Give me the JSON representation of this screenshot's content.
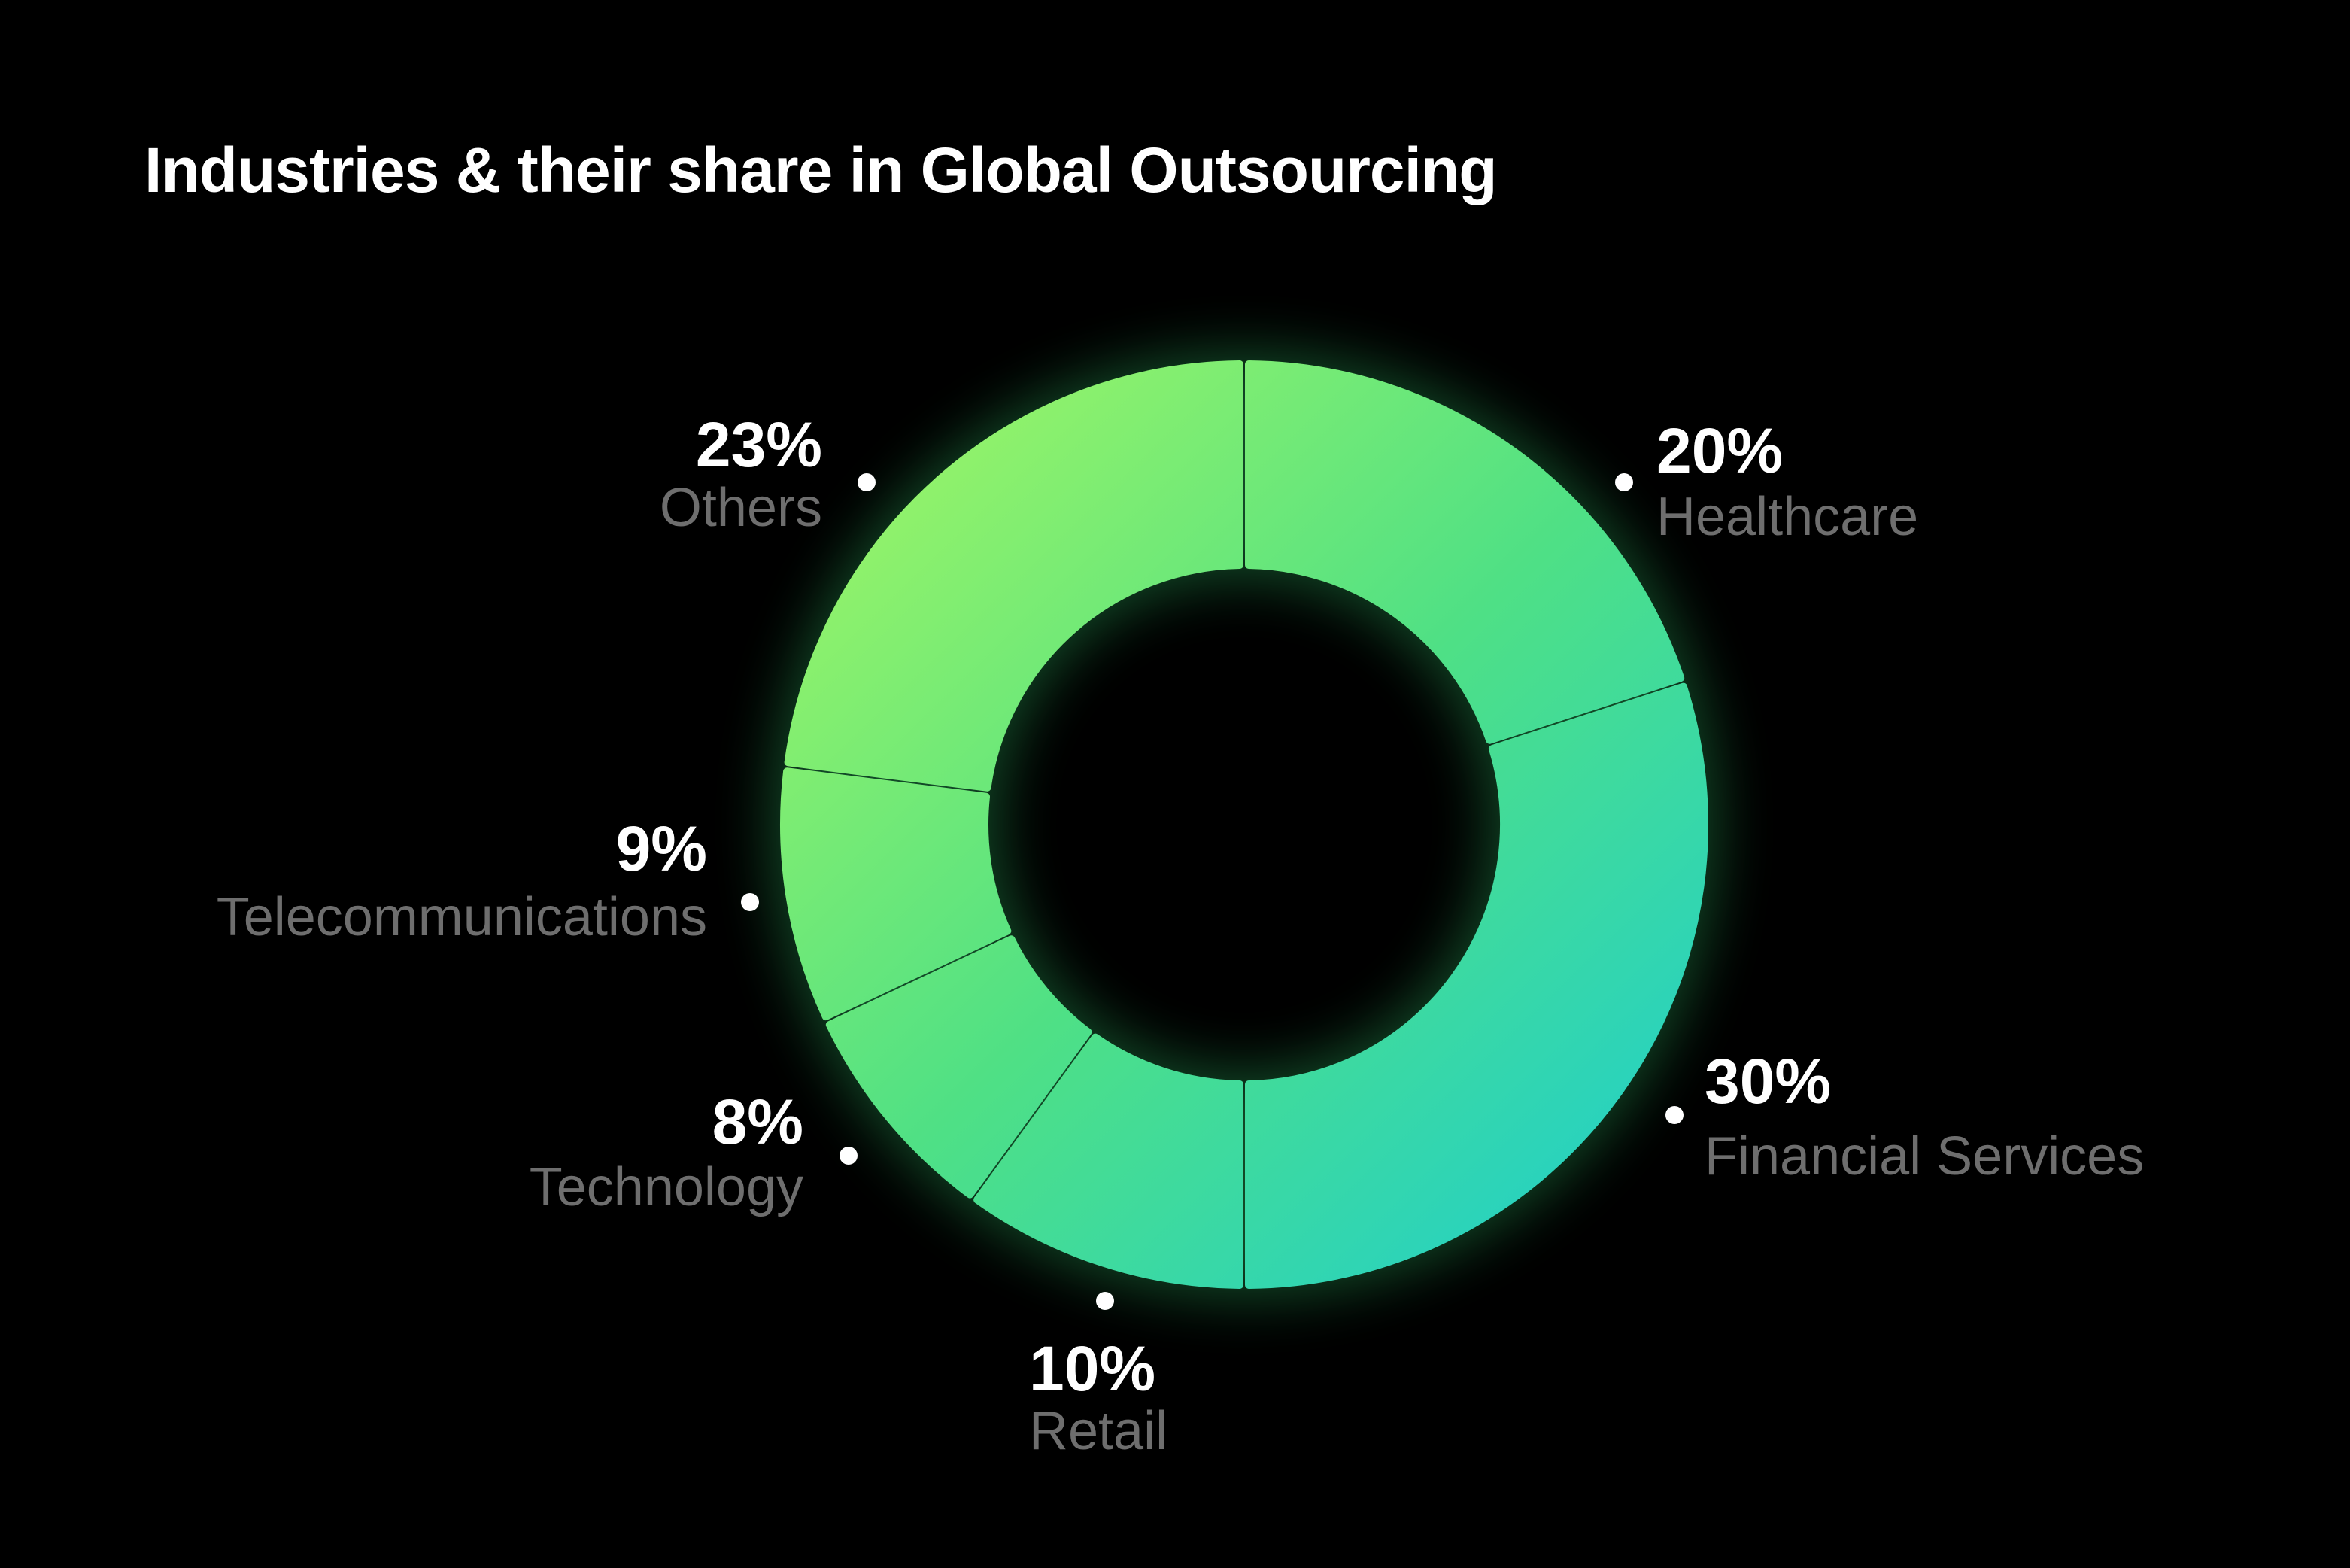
{
  "chart_data": {
    "type": "pie",
    "variant": "donut",
    "title": "Industries & their share in Global Outsourcing",
    "unit": "%",
    "slices": [
      {
        "label": "Healthcare",
        "value": 20,
        "value_label": "20%"
      },
      {
        "label": "Financial Services",
        "value": 30,
        "value_label": "30%"
      },
      {
        "label": "Retail",
        "value": 10,
        "value_label": "10%"
      },
      {
        "label": "Technology",
        "value": 8,
        "value_label": "8%"
      },
      {
        "label": "Telecommunications",
        "value": 9,
        "value_label": "9%"
      },
      {
        "label": "Others",
        "value": 23,
        "value_label": "23%"
      }
    ],
    "colors": {
      "background": "#000000",
      "gradient_start": "#9cf566",
      "gradient_mid": "#4fe085",
      "gradient_end": "#22d0c8",
      "glow": "#38e27a",
      "title": "#ffffff",
      "value_text": "#ffffff",
      "category_text": "#6e6e6e",
      "marker": "#ffffff"
    }
  }
}
